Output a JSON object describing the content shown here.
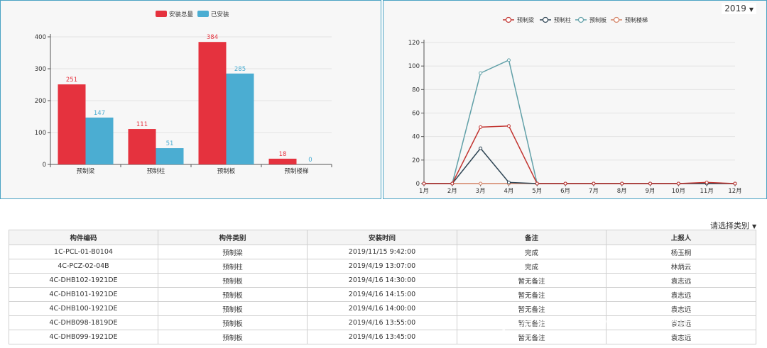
{
  "bar_chart": {
    "legend": [
      {
        "name": "安装总量",
        "color": "#e5323e"
      },
      {
        "name": "已安装",
        "color": "#4badd2"
      }
    ]
  },
  "line_chart": {
    "year": "2019",
    "legend": [
      {
        "name": "预制梁",
        "color": "#c23531"
      },
      {
        "name": "预制柱",
        "color": "#2f4554"
      },
      {
        "name": "预制板",
        "color": "#61a0a8"
      },
      {
        "name": "预制楼梯",
        "color": "#d48265"
      }
    ]
  },
  "chart_data": [
    {
      "type": "bar",
      "categories": [
        "预制梁",
        "预制柱",
        "预制板",
        "预制楼梯"
      ],
      "series": [
        {
          "name": "安装总量",
          "values": [
            251,
            111,
            384,
            18
          ],
          "color": "#e5323e"
        },
        {
          "name": "已安装",
          "values": [
            147,
            51,
            285,
            0
          ],
          "color": "#4badd2"
        }
      ],
      "ylim": [
        0,
        400
      ],
      "yticks": [
        0,
        100,
        200,
        300,
        400
      ],
      "legend": "top-center",
      "grid": true
    },
    {
      "type": "line",
      "x": [
        "1月",
        "2月",
        "3月",
        "4月",
        "5月",
        "6月",
        "7月",
        "8月",
        "9月",
        "10月",
        "11月",
        "12月"
      ],
      "series": [
        {
          "name": "预制梁",
          "values": [
            0,
            0,
            48,
            49,
            0,
            0,
            0,
            0,
            0,
            0,
            1,
            0
          ],
          "color": "#c23531"
        },
        {
          "name": "预制柱",
          "values": [
            0,
            0,
            30,
            1,
            0,
            0,
            0,
            0,
            0,
            0,
            0,
            0
          ],
          "color": "#2f4554"
        },
        {
          "name": "预制板",
          "values": [
            0,
            0,
            94,
            105,
            0,
            0,
            0,
            0,
            0,
            0,
            0,
            0
          ],
          "color": "#61a0a8"
        },
        {
          "name": "预制楼梯",
          "values": [
            0,
            0,
            0,
            0,
            0,
            0,
            0,
            0,
            0,
            0,
            0,
            0
          ],
          "color": "#d48265"
        }
      ],
      "ylim": [
        0,
        120
      ],
      "yticks": [
        0,
        20,
        40,
        60,
        80,
        100,
        120
      ],
      "legend": "top-center",
      "grid": true
    }
  ],
  "filter": {
    "placeholder": "请选择类别"
  },
  "table": {
    "headers": [
      "构件编码",
      "构件类别",
      "安装时间",
      "备注",
      "上报人"
    ],
    "rows": [
      [
        "1C-PCL-01-B0104",
        "预制梁",
        "2019/11/15 9:42:00",
        "完成",
        "杨玉桐"
      ],
      [
        "4C-PCZ-02-04B",
        "预制柱",
        "2019/4/19 13:07:00",
        "完成",
        "林炳云"
      ],
      [
        "4C-DHB102-1921DE",
        "预制板",
        "2019/4/16 14:30:00",
        "暂无备注",
        "袁志远"
      ],
      [
        "4C-DHB101-1921DE",
        "预制板",
        "2019/4/16 14:15:00",
        "暂无备注",
        "袁志远"
      ],
      [
        "4C-DHB100-1921DE",
        "预制板",
        "2019/4/16 14:00:00",
        "暂无备注",
        "袁志远"
      ],
      [
        "4C-DHB098-1819DE",
        "预制板",
        "2019/4/16 13:55:00",
        "暂无备注",
        "袁志远"
      ],
      [
        "4C-DHB099-1921DE",
        "预制板",
        "2019/4/16 13:45:00",
        "暂无备注",
        "袁志远"
      ]
    ]
  },
  "watermark": "Java学习网 www.bianchou.com"
}
